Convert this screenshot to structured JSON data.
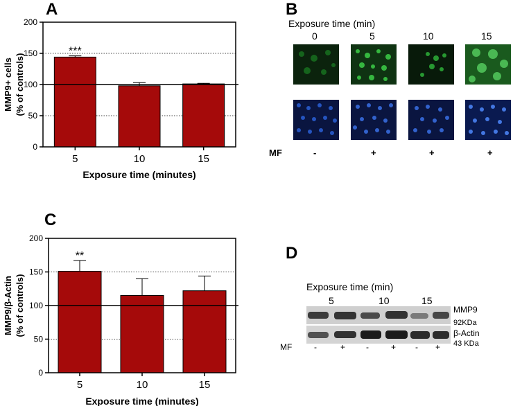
{
  "figure": {
    "panels": [
      "A",
      "B",
      "C",
      "D"
    ]
  },
  "chart_data": [
    {
      "panel": "A",
      "type": "bar",
      "categories": [
        "5",
        "10",
        "15"
      ],
      "values": [
        144,
        98,
        101
      ],
      "errors": [
        2,
        5,
        1
      ],
      "significance": [
        "***",
        "",
        ""
      ],
      "xlabel": "Exposure time (minutes)",
      "ylabel_lines": [
        "MMP9+ cells",
        "(% of controls)"
      ],
      "ylim": [
        0,
        200
      ],
      "yticks": [
        0,
        50,
        100,
        150,
        200
      ],
      "reference_line": 100,
      "dotted_gridlines": [
        50,
        150
      ],
      "bar_color": "#a50a0a"
    },
    {
      "panel": "C",
      "type": "bar",
      "categories": [
        "5",
        "10",
        "15"
      ],
      "values": [
        151,
        115,
        122
      ],
      "errors": [
        16,
        25,
        22
      ],
      "significance": [
        "**",
        "",
        ""
      ],
      "xlabel": "Exposure time (minutes)",
      "ylabel_lines": [
        "MMP9/β-Actin",
        "(% of controls)"
      ],
      "ylim": [
        0,
        200
      ],
      "yticks": [
        0,
        50,
        100,
        150,
        200
      ],
      "reference_line": 100,
      "dotted_gridlines": [
        50,
        150
      ],
      "bar_color": "#a50a0a"
    }
  ],
  "panel_b": {
    "title": "Exposure time (min)",
    "times": [
      "0",
      "5",
      "10",
      "15"
    ],
    "mf_label": "MF",
    "mf_values": [
      "-",
      "+",
      "+",
      "+"
    ],
    "green_color": "#1e9a2a",
    "blue_color": "#2a5fd6"
  },
  "panel_d": {
    "title": "Exposure time (min)",
    "times": [
      "5",
      "10",
      "15"
    ],
    "band_labels": [
      "MMP9",
      "92KDa",
      "β-Actin",
      "43 KDa"
    ],
    "mf_label": "MF",
    "mf_values": [
      "-",
      "+",
      "-",
      "+",
      "-",
      "+"
    ]
  }
}
